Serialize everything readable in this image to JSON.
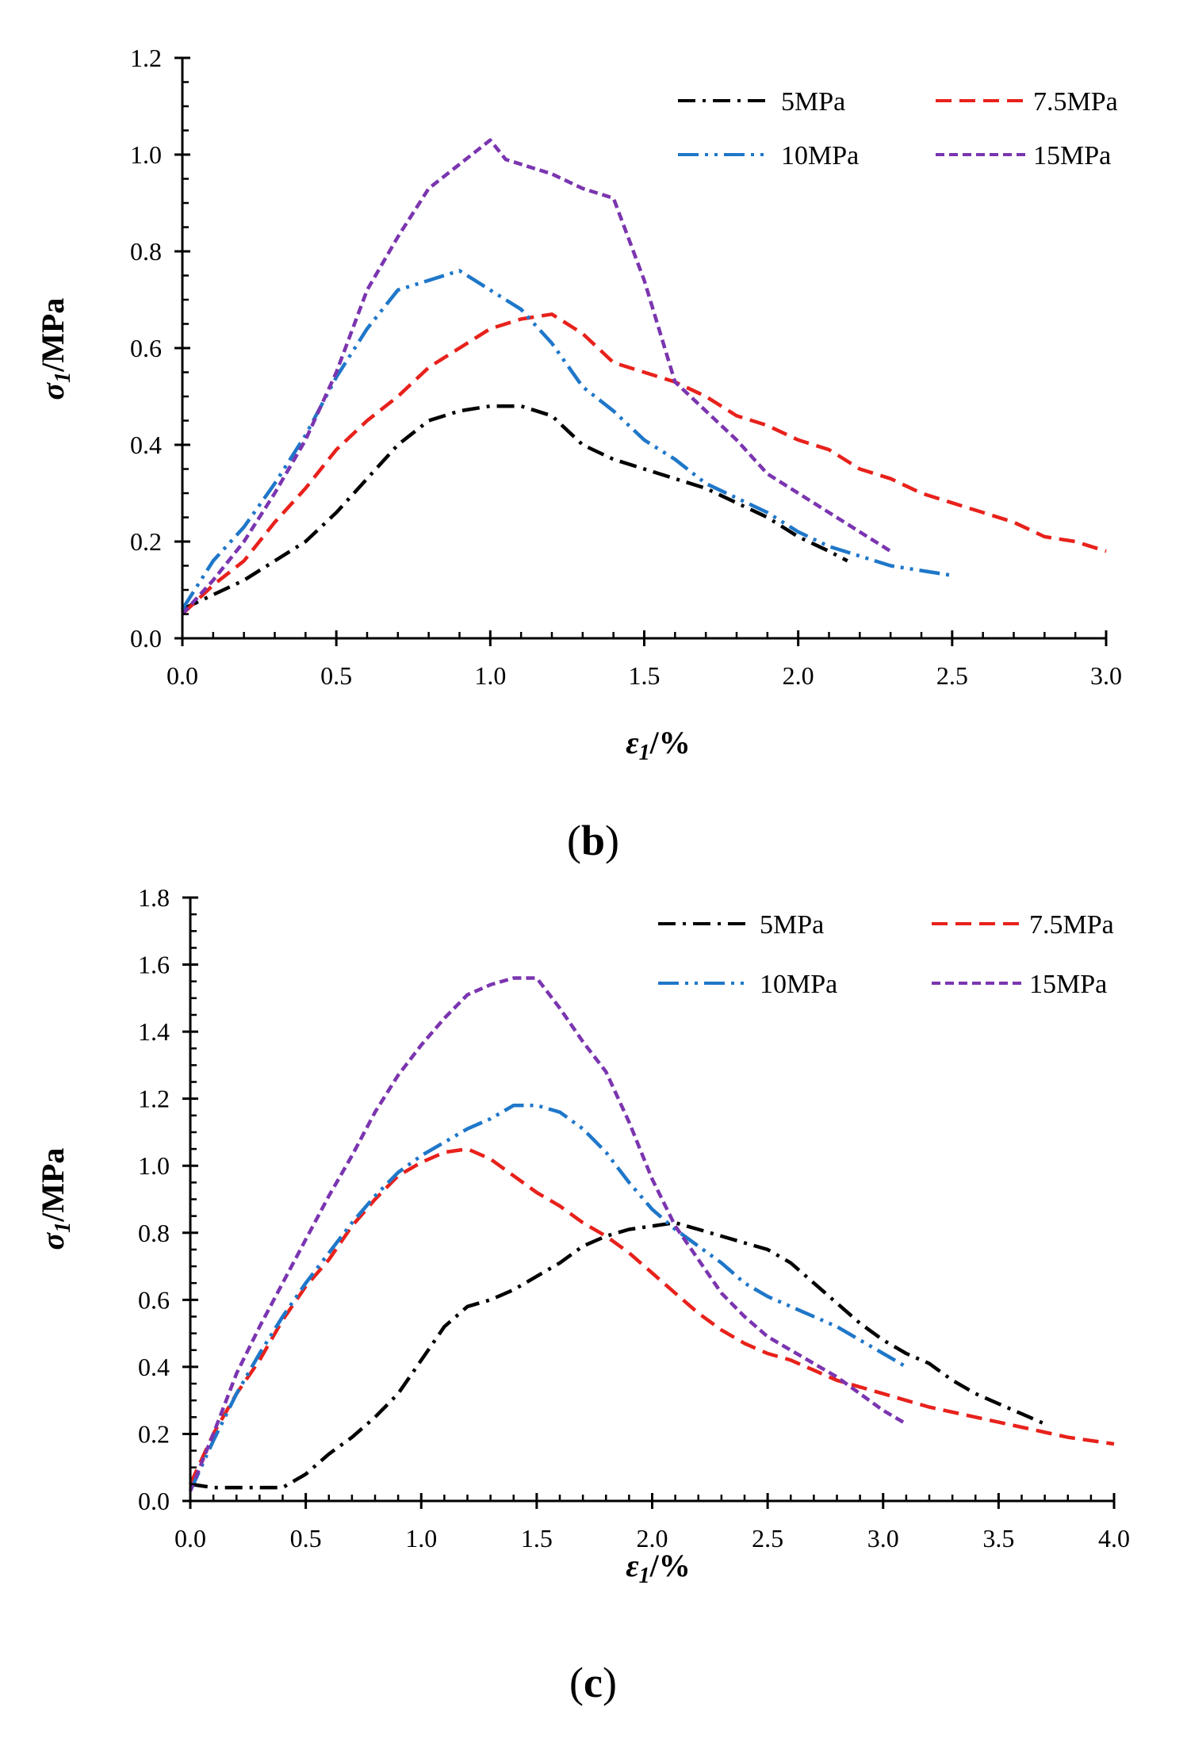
{
  "chart_data": [
    {
      "type": "line",
      "panel_label": "b",
      "title": "",
      "xlabel": "ε1/%",
      "xlabel_main": "ε",
      "xlabel_sub": "1",
      "xlabel_unit": "/%",
      "ylabel": "σ1/MPa",
      "ylabel_main": "σ",
      "ylabel_sub": "1",
      "ylabel_unit": "/MPa",
      "xlim": [
        0,
        3.0
      ],
      "ylim": [
        0,
        1.2
      ],
      "xticks": [
        0.0,
        0.5,
        1.0,
        1.5,
        2.0,
        2.5,
        3.0
      ],
      "yticks": [
        0.0,
        0.2,
        0.4,
        0.6,
        0.8,
        1.0,
        1.2
      ],
      "xtick_labels": [
        "0.0",
        "0.5",
        "1.0",
        "1.5",
        "2.0",
        "2.5",
        "3.0"
      ],
      "ytick_labels": [
        "0.0",
        "0.2",
        "0.4",
        "0.6",
        "0.8",
        "1.0",
        "1.2"
      ],
      "grid": false,
      "legend": "top-right",
      "series": [
        {
          "name": "5MPa",
          "color": "#000000",
          "dash": "dashdot",
          "points": [
            [
              0.0,
              0.06
            ],
            [
              0.1,
              0.09
            ],
            [
              0.2,
              0.12
            ],
            [
              0.3,
              0.16
            ],
            [
              0.4,
              0.2
            ],
            [
              0.5,
              0.26
            ],
            [
              0.6,
              0.33
            ],
            [
              0.7,
              0.4
            ],
            [
              0.8,
              0.45
            ],
            [
              0.9,
              0.47
            ],
            [
              1.0,
              0.48
            ],
            [
              1.1,
              0.48
            ],
            [
              1.2,
              0.46
            ],
            [
              1.3,
              0.4
            ],
            [
              1.4,
              0.37
            ],
            [
              1.5,
              0.35
            ],
            [
              1.6,
              0.33
            ],
            [
              1.7,
              0.31
            ],
            [
              1.8,
              0.28
            ],
            [
              1.9,
              0.25
            ],
            [
              2.0,
              0.21
            ],
            [
              2.1,
              0.18
            ],
            [
              2.16,
              0.16
            ]
          ]
        },
        {
          "name": "7.5MPa",
          "color": "#e8211b",
          "dash": "dash",
          "points": [
            [
              0.0,
              0.05
            ],
            [
              0.1,
              0.11
            ],
            [
              0.2,
              0.16
            ],
            [
              0.3,
              0.24
            ],
            [
              0.4,
              0.31
            ],
            [
              0.5,
              0.39
            ],
            [
              0.6,
              0.45
            ],
            [
              0.7,
              0.5
            ],
            [
              0.8,
              0.56
            ],
            [
              0.9,
              0.6
            ],
            [
              1.0,
              0.64
            ],
            [
              1.1,
              0.66
            ],
            [
              1.2,
              0.67
            ],
            [
              1.3,
              0.63
            ],
            [
              1.4,
              0.57
            ],
            [
              1.5,
              0.55
            ],
            [
              1.6,
              0.53
            ],
            [
              1.7,
              0.5
            ],
            [
              1.8,
              0.46
            ],
            [
              1.9,
              0.44
            ],
            [
              2.0,
              0.41
            ],
            [
              2.1,
              0.39
            ],
            [
              2.2,
              0.35
            ],
            [
              2.3,
              0.33
            ],
            [
              2.4,
              0.3
            ],
            [
              2.5,
              0.28
            ],
            [
              2.6,
              0.26
            ],
            [
              2.7,
              0.24
            ],
            [
              2.8,
              0.21
            ],
            [
              2.9,
              0.2
            ],
            [
              3.0,
              0.18
            ]
          ]
        },
        {
          "name": "10MPa",
          "color": "#1f77c9",
          "dash": "dashdotdot",
          "points": [
            [
              0.0,
              0.06
            ],
            [
              0.1,
              0.16
            ],
            [
              0.2,
              0.23
            ],
            [
              0.3,
              0.32
            ],
            [
              0.4,
              0.42
            ],
            [
              0.5,
              0.54
            ],
            [
              0.6,
              0.64
            ],
            [
              0.7,
              0.72
            ],
            [
              0.8,
              0.74
            ],
            [
              0.9,
              0.76
            ],
            [
              1.0,
              0.72
            ],
            [
              1.1,
              0.68
            ],
            [
              1.2,
              0.61
            ],
            [
              1.3,
              0.52
            ],
            [
              1.4,
              0.47
            ],
            [
              1.5,
              0.41
            ],
            [
              1.6,
              0.37
            ],
            [
              1.7,
              0.32
            ],
            [
              1.8,
              0.29
            ],
            [
              1.9,
              0.26
            ],
            [
              2.0,
              0.22
            ],
            [
              2.1,
              0.19
            ],
            [
              2.2,
              0.17
            ],
            [
              2.3,
              0.15
            ],
            [
              2.4,
              0.14
            ],
            [
              2.5,
              0.13
            ]
          ]
        },
        {
          "name": "15MPa",
          "color": "#7b35b0",
          "dash": "shortdash",
          "points": [
            [
              0.0,
              0.05
            ],
            [
              0.1,
              0.12
            ],
            [
              0.2,
              0.2
            ],
            [
              0.3,
              0.3
            ],
            [
              0.4,
              0.41
            ],
            [
              0.5,
              0.55
            ],
            [
              0.6,
              0.72
            ],
            [
              0.7,
              0.83
            ],
            [
              0.8,
              0.93
            ],
            [
              0.9,
              0.98
            ],
            [
              1.0,
              1.03
            ],
            [
              1.05,
              0.99
            ],
            [
              1.1,
              0.98
            ],
            [
              1.2,
              0.96
            ],
            [
              1.3,
              0.93
            ],
            [
              1.4,
              0.91
            ],
            [
              1.5,
              0.74
            ],
            [
              1.6,
              0.53
            ],
            [
              1.7,
              0.47
            ],
            [
              1.8,
              0.41
            ],
            [
              1.9,
              0.34
            ],
            [
              2.0,
              0.3
            ],
            [
              2.1,
              0.26
            ],
            [
              2.2,
              0.22
            ],
            [
              2.3,
              0.18
            ]
          ]
        }
      ]
    },
    {
      "type": "line",
      "panel_label": "c",
      "title": "",
      "xlabel": "ε1/%",
      "xlabel_main": "ε",
      "xlabel_sub": "1",
      "xlabel_unit": "/%",
      "ylabel": "σ1/MPa",
      "ylabel_main": "σ",
      "ylabel_sub": "1",
      "ylabel_unit": "/MPa",
      "xlim": [
        0,
        4.0
      ],
      "ylim": [
        0,
        1.8
      ],
      "xticks": [
        0.0,
        0.5,
        1.0,
        1.5,
        2.0,
        2.5,
        3.0,
        3.5,
        4.0
      ],
      "yticks": [
        0.0,
        0.2,
        0.4,
        0.6,
        0.8,
        1.0,
        1.2,
        1.4,
        1.6,
        1.8
      ],
      "xtick_labels": [
        "0.0",
        "0.5",
        "1.0",
        "1.5",
        "2.0",
        "2.5",
        "3.0",
        "3.5",
        "4.0"
      ],
      "ytick_labels": [
        "0.0",
        "0.2",
        "0.4",
        "0.6",
        "0.8",
        "1.0",
        "1.2",
        "1.4",
        "1.6",
        "1.8"
      ],
      "grid": false,
      "legend": "top-right",
      "series": [
        {
          "name": "5MPa",
          "color": "#000000",
          "dash": "dashdot",
          "points": [
            [
              0.0,
              0.05
            ],
            [
              0.1,
              0.04
            ],
            [
              0.2,
              0.04
            ],
            [
              0.3,
              0.04
            ],
            [
              0.4,
              0.04
            ],
            [
              0.5,
              0.08
            ],
            [
              0.6,
              0.14
            ],
            [
              0.7,
              0.19
            ],
            [
              0.8,
              0.25
            ],
            [
              0.9,
              0.32
            ],
            [
              1.0,
              0.42
            ],
            [
              1.1,
              0.52
            ],
            [
              1.2,
              0.58
            ],
            [
              1.3,
              0.6
            ],
            [
              1.4,
              0.63
            ],
            [
              1.5,
              0.67
            ],
            [
              1.6,
              0.71
            ],
            [
              1.7,
              0.76
            ],
            [
              1.8,
              0.79
            ],
            [
              1.9,
              0.81
            ],
            [
              2.0,
              0.82
            ],
            [
              2.1,
              0.83
            ],
            [
              2.2,
              0.81
            ],
            [
              2.3,
              0.79
            ],
            [
              2.4,
              0.77
            ],
            [
              2.5,
              0.75
            ],
            [
              2.6,
              0.71
            ],
            [
              2.7,
              0.65
            ],
            [
              2.8,
              0.59
            ],
            [
              2.9,
              0.53
            ],
            [
              3.0,
              0.48
            ],
            [
              3.1,
              0.44
            ],
            [
              3.2,
              0.41
            ],
            [
              3.3,
              0.36
            ],
            [
              3.4,
              0.32
            ],
            [
              3.5,
              0.29
            ],
            [
              3.6,
              0.26
            ],
            [
              3.7,
              0.23
            ]
          ]
        },
        {
          "name": "7.5MPa",
          "color": "#e8211b",
          "dash": "dash",
          "points": [
            [
              0.0,
              0.05
            ],
            [
              0.1,
              0.2
            ],
            [
              0.2,
              0.32
            ],
            [
              0.3,
              0.42
            ],
            [
              0.4,
              0.54
            ],
            [
              0.5,
              0.64
            ],
            [
              0.6,
              0.72
            ],
            [
              0.7,
              0.82
            ],
            [
              0.8,
              0.9
            ],
            [
              0.9,
              0.97
            ],
            [
              1.0,
              1.01
            ],
            [
              1.1,
              1.04
            ],
            [
              1.2,
              1.05
            ],
            [
              1.3,
              1.02
            ],
            [
              1.4,
              0.97
            ],
            [
              1.5,
              0.92
            ],
            [
              1.6,
              0.88
            ],
            [
              1.7,
              0.83
            ],
            [
              1.8,
              0.79
            ],
            [
              1.9,
              0.74
            ],
            [
              2.0,
              0.68
            ],
            [
              2.1,
              0.62
            ],
            [
              2.2,
              0.56
            ],
            [
              2.3,
              0.51
            ],
            [
              2.4,
              0.47
            ],
            [
              2.5,
              0.44
            ],
            [
              2.6,
              0.42
            ],
            [
              2.7,
              0.39
            ],
            [
              2.8,
              0.36
            ],
            [
              2.9,
              0.34
            ],
            [
              3.0,
              0.32
            ],
            [
              3.1,
              0.3
            ],
            [
              3.2,
              0.28
            ],
            [
              3.4,
              0.25
            ],
            [
              3.6,
              0.22
            ],
            [
              3.8,
              0.19
            ],
            [
              4.0,
              0.17
            ]
          ]
        },
        {
          "name": "10MPa",
          "color": "#1f77c9",
          "dash": "dashdotdot",
          "points": [
            [
              0.0,
              0.03
            ],
            [
              0.1,
              0.18
            ],
            [
              0.2,
              0.32
            ],
            [
              0.3,
              0.44
            ],
            [
              0.4,
              0.55
            ],
            [
              0.5,
              0.65
            ],
            [
              0.6,
              0.74
            ],
            [
              0.7,
              0.83
            ],
            [
              0.8,
              0.91
            ],
            [
              0.9,
              0.98
            ],
            [
              1.0,
              1.03
            ],
            [
              1.1,
              1.07
            ],
            [
              1.2,
              1.11
            ],
            [
              1.3,
              1.14
            ],
            [
              1.4,
              1.18
            ],
            [
              1.5,
              1.18
            ],
            [
              1.6,
              1.16
            ],
            [
              1.7,
              1.11
            ],
            [
              1.8,
              1.04
            ],
            [
              1.9,
              0.95
            ],
            [
              2.0,
              0.87
            ],
            [
              2.1,
              0.81
            ],
            [
              2.2,
              0.76
            ],
            [
              2.3,
              0.71
            ],
            [
              2.4,
              0.65
            ],
            [
              2.5,
              0.61
            ],
            [
              2.6,
              0.58
            ],
            [
              2.7,
              0.55
            ],
            [
              2.8,
              0.52
            ],
            [
              2.9,
              0.48
            ],
            [
              3.0,
              0.44
            ],
            [
              3.1,
              0.4
            ]
          ]
        },
        {
          "name": "15MPa",
          "color": "#7b35b0",
          "dash": "shortdash",
          "points": [
            [
              0.0,
              0.03
            ],
            [
              0.1,
              0.2
            ],
            [
              0.2,
              0.38
            ],
            [
              0.3,
              0.52
            ],
            [
              0.4,
              0.65
            ],
            [
              0.5,
              0.78
            ],
            [
              0.6,
              0.91
            ],
            [
              0.7,
              1.03
            ],
            [
              0.8,
              1.16
            ],
            [
              0.9,
              1.27
            ],
            [
              1.0,
              1.36
            ],
            [
              1.1,
              1.44
            ],
            [
              1.2,
              1.51
            ],
            [
              1.3,
              1.54
            ],
            [
              1.4,
              1.56
            ],
            [
              1.5,
              1.56
            ],
            [
              1.6,
              1.47
            ],
            [
              1.7,
              1.37
            ],
            [
              1.8,
              1.28
            ],
            [
              1.9,
              1.13
            ],
            [
              2.0,
              0.96
            ],
            [
              2.1,
              0.82
            ],
            [
              2.2,
              0.72
            ],
            [
              2.3,
              0.62
            ],
            [
              2.4,
              0.55
            ],
            [
              2.5,
              0.49
            ],
            [
              2.6,
              0.45
            ],
            [
              2.7,
              0.41
            ],
            [
              2.8,
              0.37
            ],
            [
              2.9,
              0.32
            ],
            [
              3.0,
              0.27
            ],
            [
              3.1,
              0.23
            ]
          ]
        }
      ]
    }
  ]
}
